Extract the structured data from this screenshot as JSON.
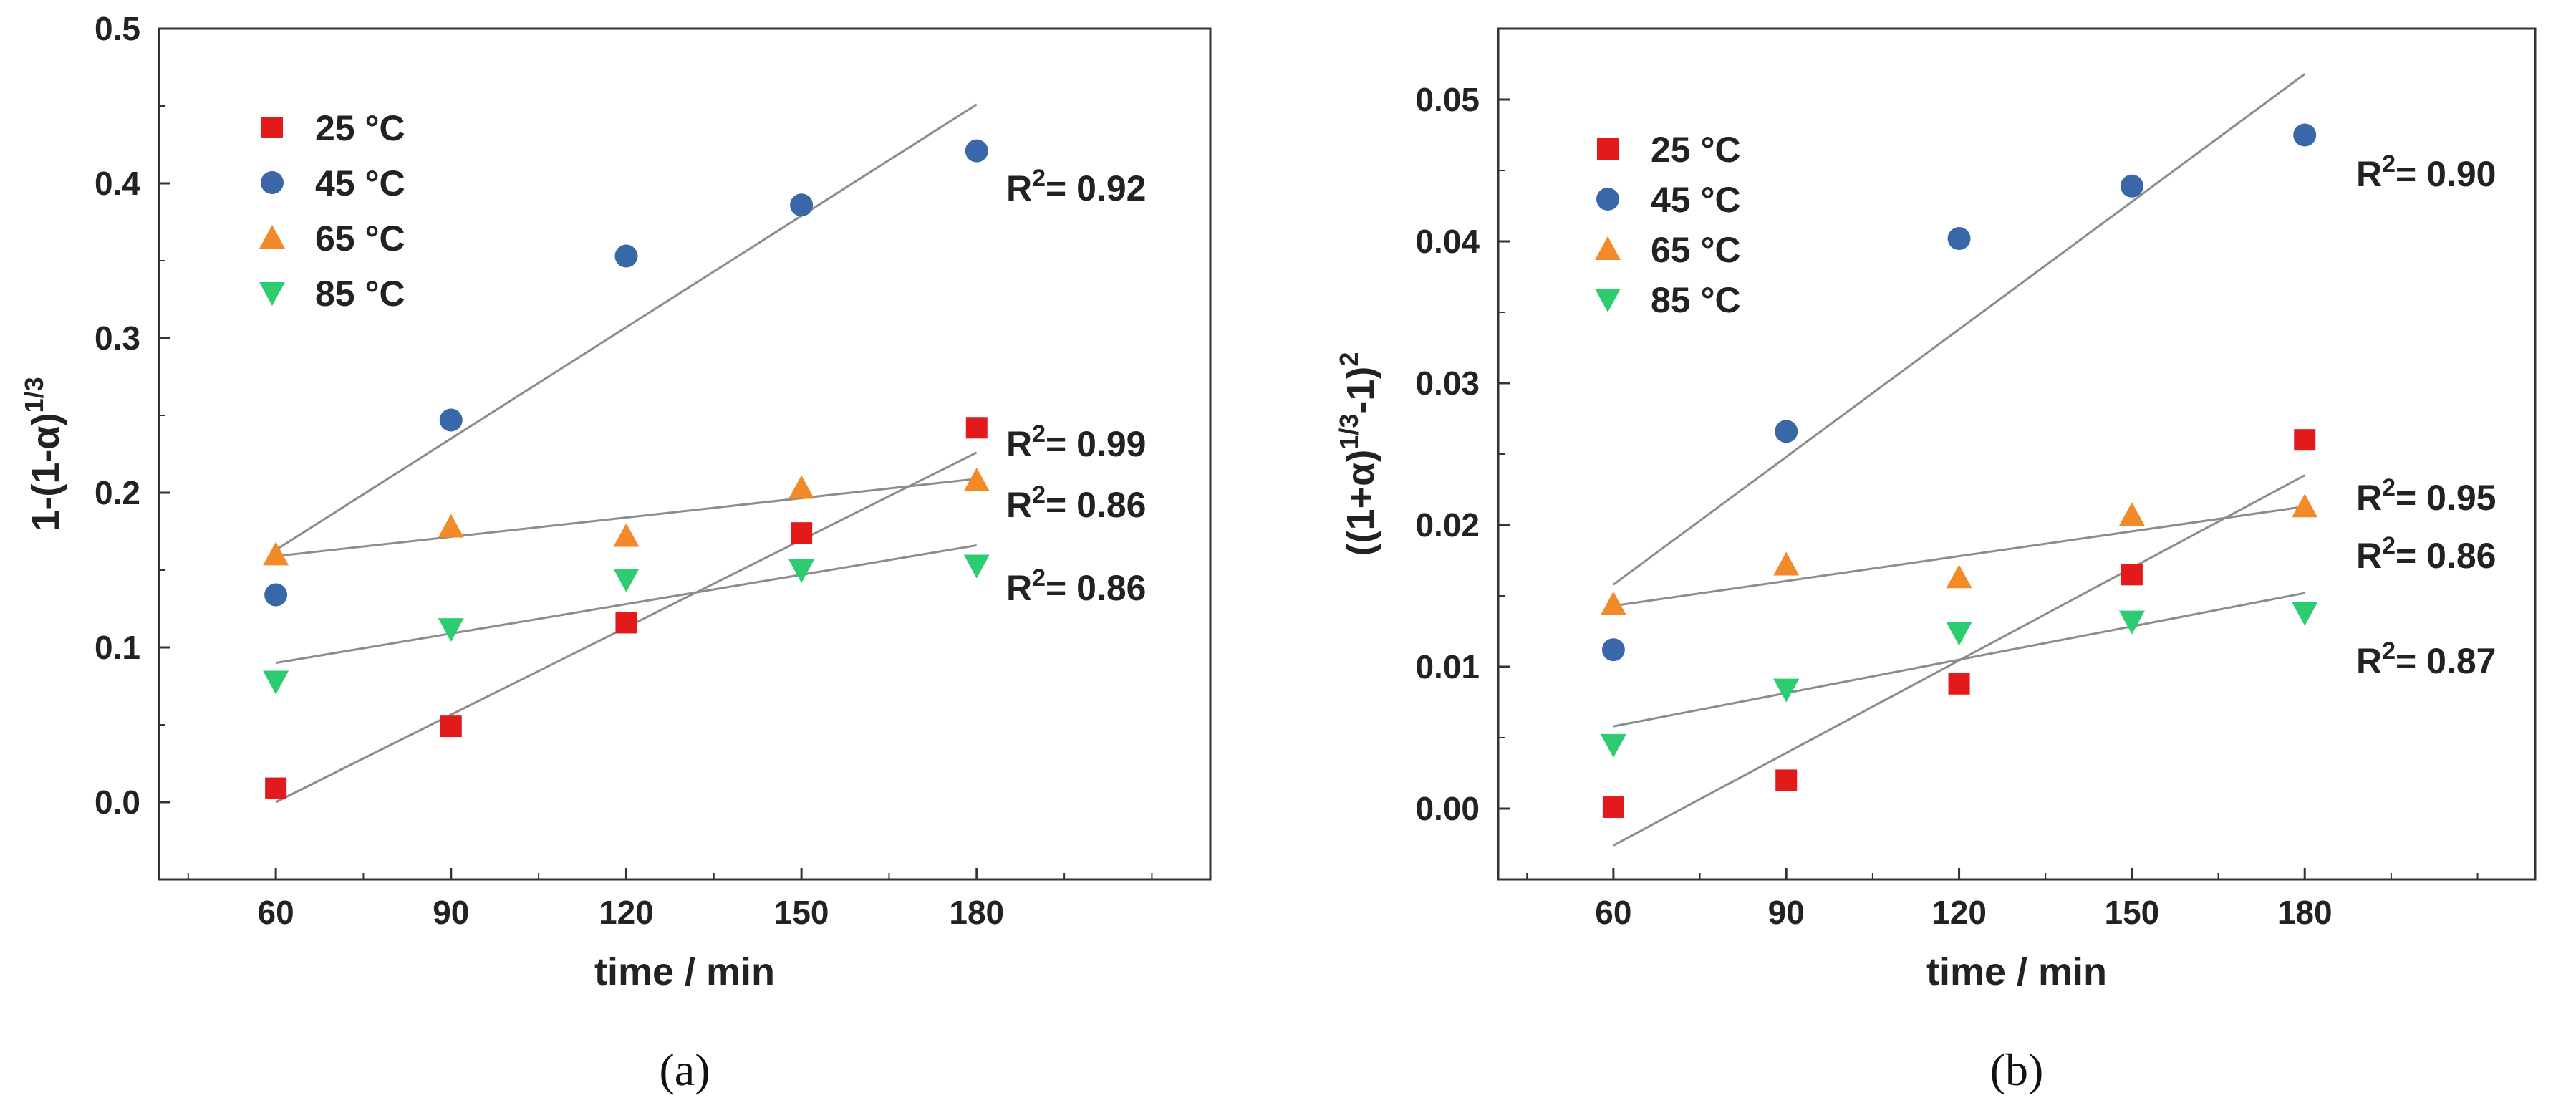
{
  "chart_data": [
    {
      "type": "scatter",
      "panel_label": "(a)",
      "xlabel": "time / min",
      "ylabel": "1-(1-α)",
      "ylabel_exponent": "1/3",
      "xlim": [
        40,
        220
      ],
      "ylim": [
        -0.05,
        0.5
      ],
      "x_ticks": [
        "60",
        "90",
        "120",
        "150",
        "180"
      ],
      "y_ticks": [
        "0.0",
        "0.1",
        "0.2",
        "0.3",
        "0.4",
        "0.5"
      ],
      "legend_position": "top-left",
      "x": [
        60,
        90,
        120,
        150,
        180
      ],
      "series": [
        {
          "name": "25 °C",
          "color": "#e31a1c",
          "marker": "square",
          "values": [
            0.009,
            0.049,
            0.116,
            0.174,
            0.242
          ],
          "fit": [
            0.0,
            0.226
          ],
          "r2": "0.99"
        },
        {
          "name": "45 °C",
          "color": "#3a67a8",
          "marker": "circle",
          "values": [
            0.134,
            0.247,
            0.353,
            0.386,
            0.421
          ],
          "fit": [
            0.163,
            0.451
          ],
          "r2": "0.92"
        },
        {
          "name": "65 °C",
          "color": "#f28a2a",
          "marker": "triangle-up",
          "values": [
            0.16,
            0.178,
            0.172,
            0.203,
            0.208
          ],
          "fit": [
            0.159,
            0.209
          ],
          "r2": "0.86"
        },
        {
          "name": "85 °C",
          "color": "#2ecc71",
          "marker": "triangle-down",
          "values": [
            0.078,
            0.112,
            0.144,
            0.15,
            0.153
          ],
          "fit": [
            0.09,
            0.166
          ],
          "r2": "0.86"
        }
      ],
      "annotation_label": "R",
      "annotation_exp": "2",
      "annotation_eq": "= "
    },
    {
      "type": "scatter",
      "panel_label": "(b)",
      "xlabel": "time / min",
      "ylabel": "((1+α)",
      "ylabel_exponent": "1/3",
      "ylabel_mid": "-1)",
      "ylabel_exponent2": "2",
      "xlim": [
        40,
        220
      ],
      "ylim": [
        -0.005,
        0.055
      ],
      "x_ticks": [
        "60",
        "90",
        "120",
        "150",
        "180"
      ],
      "y_ticks": [
        "0.00",
        "0.01",
        "0.02",
        "0.03",
        "0.04",
        "0.05"
      ],
      "legend_position": "top-left",
      "x": [
        60,
        90,
        120,
        150,
        180
      ],
      "series": [
        {
          "name": "25 °C",
          "color": "#e31a1c",
          "marker": "square",
          "values": [
            0.0001,
            0.002,
            0.0088,
            0.0165,
            0.026
          ],
          "fit": [
            -0.0026,
            0.0235
          ],
          "r2": "0.95"
        },
        {
          "name": "45 °C",
          "color": "#3a67a8",
          "marker": "circle",
          "values": [
            0.0112,
            0.0266,
            0.0402,
            0.0439,
            0.0475
          ],
          "fit": [
            0.0158,
            0.0518
          ],
          "r2": "0.90"
        },
        {
          "name": "65 °C",
          "color": "#f28a2a",
          "marker": "triangle-up",
          "values": [
            0.0144,
            0.0172,
            0.0163,
            0.0207,
            0.0213
          ],
          "fit": [
            0.0143,
            0.0213
          ],
          "r2": "0.86"
        },
        {
          "name": "85 °C",
          "color": "#2ecc71",
          "marker": "triangle-down",
          "values": [
            0.0045,
            0.0084,
            0.0124,
            0.0132,
            0.0138
          ],
          "fit": [
            0.0058,
            0.0152
          ],
          "r2": "0.87"
        }
      ],
      "annotation_label": "R",
      "annotation_exp": "2",
      "annotation_eq": "= "
    }
  ]
}
